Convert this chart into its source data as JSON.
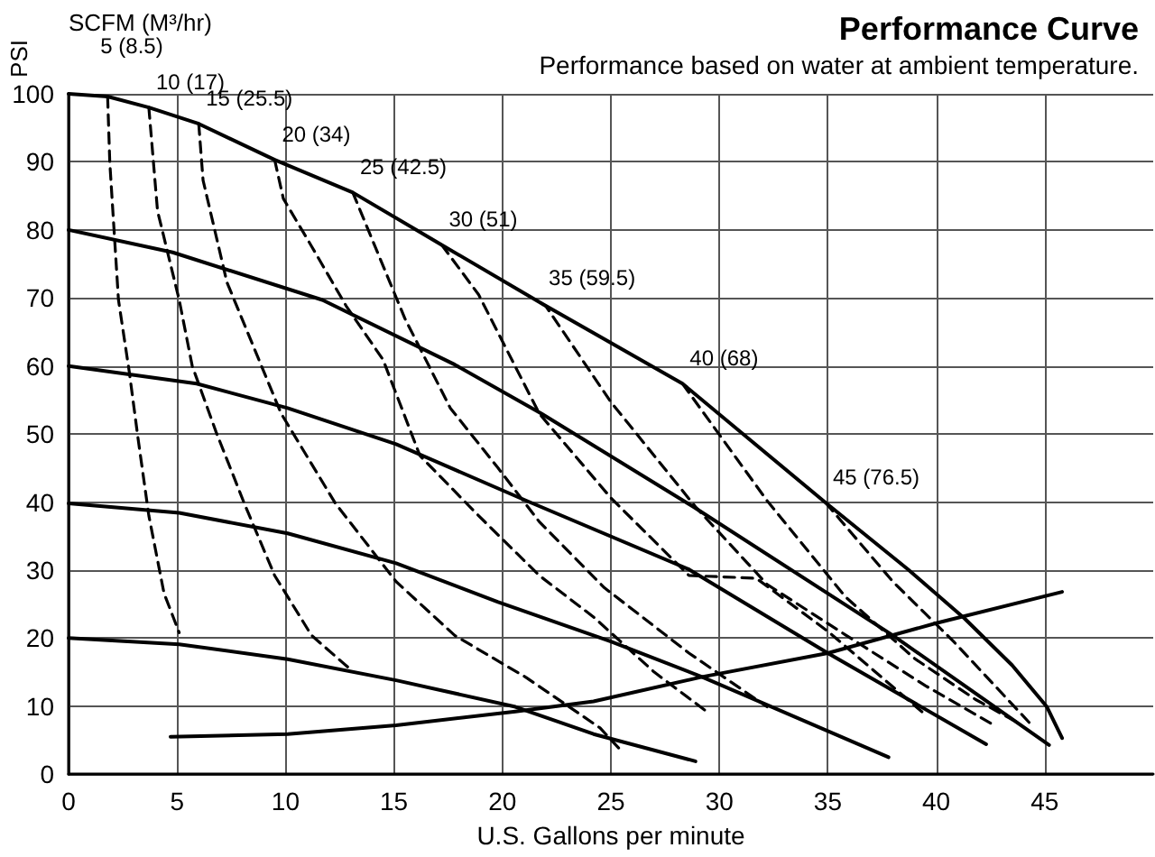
{
  "chart_data": {
    "type": "line",
    "title": "Performance Curve",
    "subtitle": "Performance based on water at ambient temperature.",
    "xlabel": "U.S. Gallons per minute",
    "ylabel": "PSI",
    "annotations": [
      "SCFM (M³/hr)"
    ],
    "xlim": [
      0,
      50
    ],
    "xticks": [
      0,
      5,
      10,
      15,
      20,
      25,
      30,
      35,
      40,
      45
    ],
    "ylim": [
      0,
      100
    ],
    "yticks": [
      0,
      10,
      20,
      30,
      40,
      50,
      60,
      70,
      80,
      90,
      100
    ],
    "grid": true,
    "legend": false,
    "marker": "none",
    "series": [
      {
        "color": "#000000",
        "line_style": "solid",
        "x": [
          0,
          1.8,
          3.7,
          6.0,
          9.5,
          13.1,
          17.2,
          21.8,
          28.3,
          34.9,
          38.7,
          41.3,
          43.5,
          45.1,
          45.8
        ],
        "values": [
          100,
          99.6,
          98.0,
          95.6,
          90.3,
          85.5,
          77.8,
          69.2,
          57.4,
          39.9,
          30.1,
          22.9,
          16.0,
          9.9,
          5.3
        ]
      },
      {
        "color": "#000000",
        "line_style": "solid",
        "x": [
          0,
          4.8,
          11.7,
          17.8,
          21.8,
          28.8,
          38.0,
          45.2
        ],
        "values": [
          80,
          76.7,
          69.7,
          60.2,
          53.0,
          39.3,
          20.4,
          4.3
        ]
      },
      {
        "color": "#000000",
        "line_style": "solid",
        "x": [
          0,
          5.9,
          10.1,
          15.1,
          21.1,
          28.6,
          35.0,
          42.3
        ],
        "values": [
          60,
          57.4,
          53.8,
          48.5,
          40.2,
          30.1,
          17.8,
          4.4
        ]
      },
      {
        "color": "#000000",
        "line_style": "solid",
        "x": [
          0,
          5.1,
          10.1,
          15.1,
          19.8,
          25.0,
          29.2,
          37.8
        ],
        "values": [
          39.8,
          38.4,
          35.4,
          31.0,
          25.3,
          19.5,
          14.3,
          2.5
        ]
      },
      {
        "color": "#000000",
        "line_style": "solid",
        "x": [
          0,
          5.1,
          10.1,
          15.1,
          20.6,
          24.2,
          28.9
        ],
        "values": [
          20,
          19.1,
          16.9,
          13.8,
          9.9,
          5.9,
          1.9
        ]
      },
      {
        "color": "#000000",
        "line_style": "solid",
        "x": [
          4.7,
          10.1,
          15.1,
          20.6,
          24.2,
          29.2,
          35.0,
          40.0,
          45.8
        ],
        "values": [
          5.5,
          5.9,
          7.2,
          9.2,
          10.7,
          14.3,
          17.8,
          22.2,
          26.8
        ]
      },
      {
        "name": "5 (8.5)",
        "color": "#000000",
        "line_style": "dashed",
        "x": [
          1.8,
          1.9,
          2.3,
          2.8,
          3.2,
          3.7,
          4.4,
          5.1
        ],
        "values": [
          99.6,
          89.9,
          69.7,
          59.1,
          49.4,
          38.0,
          26.6,
          20.8
        ]
      },
      {
        "name": "10 (17)",
        "color": "#000000",
        "line_style": "dashed",
        "x": [
          3.7,
          4.1,
          5.1,
          5.7,
          6.8,
          8.1,
          9.5,
          11.2,
          13.1
        ],
        "values": [
          98.0,
          82.8,
          69.7,
          60,
          50.3,
          39.8,
          29.2,
          20.4,
          15.1
        ]
      },
      {
        "name": "15 (25.5)",
        "color": "#000000",
        "line_style": "dashed",
        "x": [
          6.0,
          6.2,
          7.3,
          9.8,
          12.3,
          15.1,
          17.8,
          21.1,
          24.5,
          25.4
        ],
        "values": [
          95.6,
          87.3,
          72.3,
          53.0,
          39.8,
          28.3,
          20.4,
          14.2,
          6.8,
          3.7
        ]
      },
      {
        "name": "20 (34)",
        "color": "#000000",
        "line_style": "dashed",
        "x": [
          9.5,
          9.9,
          11.2,
          12.8,
          14.5,
          16.2,
          18.9,
          21.7,
          24.2,
          27,
          29.5
        ],
        "values": [
          90.3,
          84.6,
          77.6,
          68.8,
          60.9,
          46.8,
          38.0,
          29.2,
          23.1,
          15,
          9
        ]
      },
      {
        "name": "25 (42.5)",
        "color": "#000000",
        "line_style": "dashed",
        "x": [
          13.1,
          15.5,
          17.6,
          19.8,
          21.7,
          24.7,
          28.6,
          32.2
        ],
        "values": [
          85.5,
          67,
          53.8,
          45,
          37.1,
          27.4,
          17.8,
          9.9
        ]
      },
      {
        "name": "30 (51)",
        "color": "#000000",
        "line_style": "dashed",
        "x": [
          17.2,
          18.9,
          21.7,
          25.0,
          28.6,
          31.7,
          35.0,
          38.6,
          39.4
        ],
        "values": [
          77.8,
          70.5,
          53,
          40.6,
          29.2,
          28.8,
          21,
          11.2,
          9.0
        ]
      },
      {
        "name": "35 (59.5)",
        "color": "#000000",
        "line_style": "dashed",
        "x": [
          21.8,
          22.0,
          25.0,
          28.9,
          32.2,
          35.8,
          39.5,
          42.5
        ],
        "values": [
          69.2,
          68.8,
          54.7,
          39.3,
          27.9,
          20.5,
          13,
          7.5
        ]
      },
      {
        "name": "40 (68)",
        "color": "#000000",
        "line_style": "dashed",
        "x": [
          28.3,
          32.2,
          35.8,
          39.0,
          41.8,
          43.8
        ],
        "values": [
          57.4,
          40.2,
          26.1,
          17,
          11,
          7.5
        ]
      },
      {
        "name": "45 (76.5)",
        "color": "#000000",
        "line_style": "dashed",
        "x": [
          34.9,
          38.0,
          40.8,
          44.4
        ],
        "values": [
          39.9,
          28.3,
          19.5,
          7.2
        ]
      }
    ]
  }
}
